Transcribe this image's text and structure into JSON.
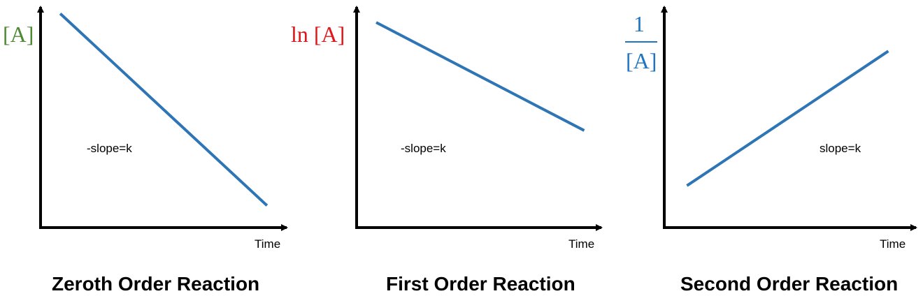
{
  "colors": {
    "line": "#2e75b6",
    "axis": "#000000",
    "zeroth_label": "#4e8a34",
    "first_label": "#e0161b",
    "second_label": "#1f74c4"
  },
  "chart_data": [
    {
      "type": "line",
      "title": "Zeroth Order Reaction",
      "ylabel": "[A]",
      "xlabel": "Time",
      "annotation": "-slope=k",
      "series": [
        {
          "x": [
            0.08,
            0.92
          ],
          "y": [
            0.97,
            0.1
          ]
        }
      ],
      "xlim": [
        0,
        1
      ],
      "ylim": [
        0,
        1
      ],
      "grid": false
    },
    {
      "type": "line",
      "title": "First Order Reaction",
      "ylabel": "ln [A]",
      "xlabel": "Time",
      "annotation": "-slope=k",
      "series": [
        {
          "x": [
            0.08,
            0.93
          ],
          "y": [
            0.93,
            0.44
          ]
        }
      ],
      "xlim": [
        0,
        1
      ],
      "ylim": [
        0,
        1
      ],
      "grid": false
    },
    {
      "type": "line",
      "title": "Second Order Reaction",
      "ylabel_num": "1",
      "ylabel_den": "[A]",
      "xlabel": "Time",
      "annotation": "slope=k",
      "series": [
        {
          "x": [
            0.09,
            0.89
          ],
          "y": [
            0.19,
            0.8
          ]
        }
      ],
      "xlim": [
        0,
        1
      ],
      "ylim": [
        0,
        1
      ],
      "grid": false
    }
  ]
}
